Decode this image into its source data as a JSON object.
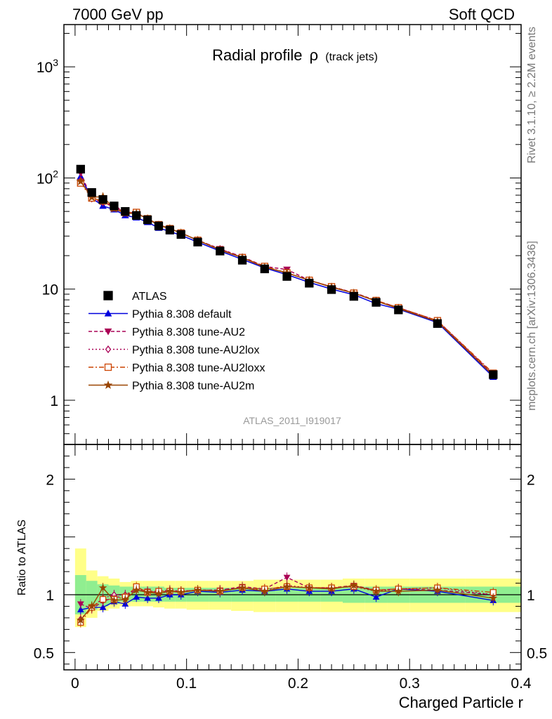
{
  "header": {
    "left": "7000 GeV pp",
    "right": "Soft QCD"
  },
  "side_text": {
    "rivet": "Rivet 3.1.10, ≥ 2.2M events",
    "mcplots": "mcplots.cern.ch [arXiv:1306.3436]"
  },
  "chart_data": [
    {
      "type": "line",
      "title": "Radial profile",
      "title_symbol": "ρ",
      "title_suffix": "(track jets)",
      "watermark": "ATLAS_2011_I919017",
      "yscale": "log",
      "ylim": [
        0.4,
        2400
      ],
      "xlim": [
        -0.01,
        0.4
      ],
      "grid": false,
      "legend_position": "lower-left",
      "y_ticks": [
        {
          "value": 1000,
          "label": "10",
          "exp": "3"
        },
        {
          "value": 100,
          "label": "10",
          "exp": "2"
        },
        {
          "value": 10,
          "label": "10",
          "exp": ""
        },
        {
          "value": 1,
          "label": "1",
          "exp": ""
        }
      ],
      "x": [
        0.005,
        0.015,
        0.025,
        0.035,
        0.045,
        0.055,
        0.065,
        0.075,
        0.085,
        0.095,
        0.11,
        0.13,
        0.15,
        0.17,
        0.19,
        0.21,
        0.23,
        0.25,
        0.27,
        0.29,
        0.325,
        0.375
      ],
      "data": {
        "name": "ATLAS",
        "color": "#000000",
        "values": [
          120,
          74,
          64,
          56,
          50,
          46,
          42,
          37,
          34,
          31,
          26.5,
          22,
          18.2,
          15.2,
          13,
          11.3,
          9.9,
          8.6,
          7.6,
          6.5,
          4.9,
          1.7
        ]
      },
      "series": [
        {
          "name": "Pythia 8.308 default",
          "color": "#0000dd",
          "dash": "",
          "marker": "triangle-up",
          "filled": true,
          "values": [
            103,
            66,
            56,
            52,
            46,
            44,
            40,
            35.5,
            33,
            30.5,
            26.5,
            22,
            18.5,
            15.5,
            13.5,
            11.5,
            10,
            8.9,
            7.4,
            6.6,
            5.0,
            1.62
          ]
        },
        {
          "name": "Pythia 8.308 tune-AU2",
          "color": "#aa0055",
          "dash": "5,3",
          "marker": "triangle-down",
          "filled": true,
          "values": [
            111,
            65,
            60,
            55,
            49,
            48,
            43,
            38,
            35,
            32,
            27.5,
            23,
            19.5,
            16,
            15,
            12,
            10.5,
            9.3,
            7.9,
            6.8,
            5.2,
            1.7
          ]
        },
        {
          "name": "Pythia 8.308 tune-AU2lox",
          "color": "#aa0055",
          "dash": "2,3",
          "marker": "diamond",
          "filled": false,
          "values": [
            95,
            66,
            62,
            56,
            50,
            48,
            43,
            38,
            35,
            32,
            27.5,
            23,
            19.3,
            15.8,
            14,
            12,
            10.5,
            9.2,
            7.8,
            6.8,
            5.2,
            1.72
          ]
        },
        {
          "name": "Pythia 8.308 tune-AU2loxx",
          "color": "#cc4400",
          "dash": "7,3,2,3",
          "marker": "square",
          "filled": false,
          "values": [
            90,
            66,
            62,
            54,
            49,
            49,
            43,
            38,
            35,
            32,
            27.5,
            22.5,
            19.2,
            16,
            14,
            12,
            10.5,
            9.2,
            7.9,
            6.8,
            5.2,
            1.75
          ]
        },
        {
          "name": "Pythia 8.308 tune-AU2m",
          "color": "#994400",
          "dash": "",
          "marker": "star",
          "filled": true,
          "values": [
            93,
            67,
            68,
            53,
            48,
            48,
            43,
            37.5,
            35,
            32,
            27.5,
            22.5,
            19.2,
            15.7,
            14,
            12,
            10.4,
            9.2,
            7.8,
            6.7,
            5.1,
            1.67
          ]
        }
      ]
    },
    {
      "type": "line",
      "ylabel": "Ratio to ATLAS",
      "xlabel": "Charged Particle r",
      "ylim": [
        0.35,
        2.3
      ],
      "xlim": [
        -0.01,
        0.4
      ],
      "x_ticks": [
        {
          "value": 0,
          "label": "0"
        },
        {
          "value": 0.1,
          "label": "0.1"
        },
        {
          "value": 0.2,
          "label": "0.2"
        },
        {
          "value": 0.3,
          "label": "0.3"
        },
        {
          "value": 0.4,
          "label": "0.4"
        }
      ],
      "y_ticks": [
        {
          "value": 2,
          "label": "2"
        },
        {
          "value": 1,
          "label": "1"
        },
        {
          "value": 0.5,
          "label": "0.5"
        }
      ],
      "bin_edges": [
        0,
        0.01,
        0.02,
        0.03,
        0.04,
        0.05,
        0.06,
        0.07,
        0.08,
        0.09,
        0.1,
        0.12,
        0.14,
        0.16,
        0.18,
        0.2,
        0.22,
        0.24,
        0.26,
        0.28,
        0.3,
        0.35,
        0.4
      ],
      "band_inner": {
        "color": "#90ee90",
        "low": [
          0.83,
          0.87,
          0.9,
          0.92,
          0.94,
          0.94,
          0.94,
          0.94,
          0.94,
          0.94,
          0.94,
          0.94,
          0.94,
          0.94,
          0.94,
          0.94,
          0.94,
          0.93,
          0.93,
          0.93,
          0.93,
          0.93
        ],
        "high": [
          1.17,
          1.12,
          1.09,
          1.08,
          1.07,
          1.07,
          1.07,
          1.07,
          1.06,
          1.06,
          1.06,
          1.06,
          1.06,
          1.06,
          1.06,
          1.06,
          1.06,
          1.07,
          1.07,
          1.07,
          1.07,
          1.07
        ]
      },
      "band_outer": {
        "color": "#ffff88",
        "low": [
          0.72,
          0.8,
          0.86,
          0.88,
          0.9,
          0.9,
          0.9,
          0.89,
          0.88,
          0.88,
          0.87,
          0.87,
          0.86,
          0.85,
          0.85,
          0.85,
          0.85,
          0.85,
          0.85,
          0.85,
          0.85,
          0.85
        ],
        "high": [
          1.4,
          1.21,
          1.16,
          1.14,
          1.11,
          1.12,
          1.12,
          1.12,
          1.12,
          1.12,
          1.12,
          1.12,
          1.12,
          1.13,
          1.13,
          1.13,
          1.13,
          1.14,
          1.14,
          1.14,
          1.14,
          1.14
        ]
      },
      "series": [
        {
          "name": "Pythia 8.308 default",
          "color": "#0000dd",
          "dash": "",
          "marker": "triangle-up",
          "filled": true,
          "values": [
            0.87,
            0.89,
            0.89,
            0.94,
            0.92,
            0.98,
            0.97,
            0.97,
            1.0,
            1.0,
            1.03,
            1.02,
            1.04,
            1.03,
            1.05,
            1.03,
            1.03,
            1.05,
            0.98,
            1.05,
            1.03,
            0.95
          ]
        },
        {
          "name": "Pythia 8.308 tune-AU2",
          "color": "#aa0055",
          "dash": "5,3",
          "marker": "triangle-down",
          "filled": true,
          "values": [
            0.92,
            0.88,
            0.94,
            0.98,
            0.98,
            1.05,
            1.03,
            1.02,
            1.03,
            1.03,
            1.04,
            1.04,
            1.07,
            1.05,
            1.15,
            1.06,
            1.06,
            1.08,
            1.04,
            1.05,
            1.04,
            1.0
          ]
        },
        {
          "name": "Pythia 8.308 tune-AU2lox",
          "color": "#aa0055",
          "dash": "2,3",
          "marker": "diamond",
          "filled": false,
          "values": [
            0.79,
            0.89,
            0.97,
            1.0,
            1.0,
            1.05,
            1.03,
            1.03,
            1.04,
            1.03,
            1.04,
            1.04,
            1.06,
            1.04,
            1.08,
            1.06,
            1.06,
            1.07,
            1.03,
            1.05,
            1.06,
            1.0
          ]
        },
        {
          "name": "Pythia 8.308 tune-AU2loxx",
          "color": "#cc4400",
          "dash": "7,3,2,3",
          "marker": "square",
          "filled": false,
          "values": [
            0.76,
            0.89,
            0.96,
            0.96,
            0.98,
            1.07,
            1.02,
            1.03,
            1.03,
            1.03,
            1.04,
            1.03,
            1.06,
            1.05,
            1.07,
            1.06,
            1.06,
            1.07,
            1.04,
            1.05,
            1.06,
            1.02
          ]
        },
        {
          "name": "Pythia 8.308 tune-AU2m",
          "color": "#994400",
          "dash": "",
          "marker": "star",
          "filled": true,
          "values": [
            0.78,
            0.9,
            1.06,
            0.95,
            0.96,
            1.04,
            1.02,
            1.01,
            1.03,
            1.02,
            1.04,
            1.03,
            1.06,
            1.03,
            1.07,
            1.06,
            1.05,
            1.08,
            1.03,
            1.03,
            1.04,
            0.97
          ]
        }
      ]
    }
  ]
}
